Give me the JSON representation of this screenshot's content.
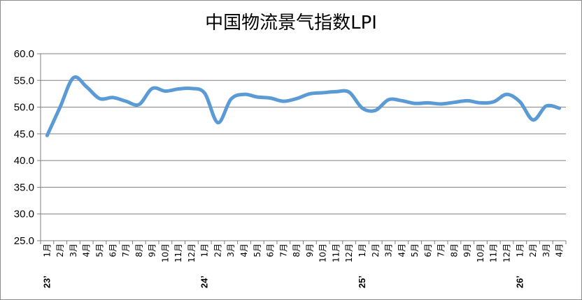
{
  "chart_data": {
    "type": "line",
    "title": "中国物流景气指数LPI",
    "xlabel": "",
    "ylabel": "",
    "ylim": [
      25.0,
      60.0
    ],
    "y_ticks": [
      "25.0",
      "30.0",
      "35.0",
      "40.0",
      "45.0",
      "50.0",
      "55.0",
      "60.0"
    ],
    "grid": true,
    "legend": "none",
    "line_color": "#5b9bd5",
    "categories": [
      "1月",
      "2月",
      "3月",
      "4月",
      "5月",
      "6月",
      "7月",
      "8月",
      "9月",
      "10月",
      "11月",
      "12月",
      "1月",
      "2月",
      "3月",
      "4月",
      "5月",
      "6月",
      "7月",
      "8月",
      "9月",
      "10月",
      "11月",
      "12月",
      "1月",
      "2月",
      "3月",
      "4月",
      "5月",
      "6月",
      "7月",
      "8月",
      "9月",
      "10月",
      "11月",
      "12月",
      "1月",
      "2月",
      "3月",
      "4月"
    ],
    "year_labels": [
      {
        "label": "23’",
        "index": 0
      },
      {
        "label": "24’",
        "index": 12
      },
      {
        "label": "25’",
        "index": 24
      },
      {
        "label": "26’",
        "index": 36
      }
    ],
    "series": [
      {
        "values": [
          44.7,
          50.1,
          55.5,
          53.8,
          51.6,
          51.8,
          51.1,
          50.5,
          53.5,
          53.0,
          53.4,
          53.5,
          52.6,
          47.1,
          51.5,
          52.4,
          51.9,
          51.7,
          51.1,
          51.6,
          52.5,
          52.7,
          52.9,
          52.8,
          49.8,
          49.4,
          51.4,
          51.2,
          50.7,
          50.8,
          50.6,
          50.9,
          51.2,
          50.8,
          51.0,
          52.4,
          51.0,
          47.6,
          50.2,
          49.8
        ]
      }
    ]
  }
}
